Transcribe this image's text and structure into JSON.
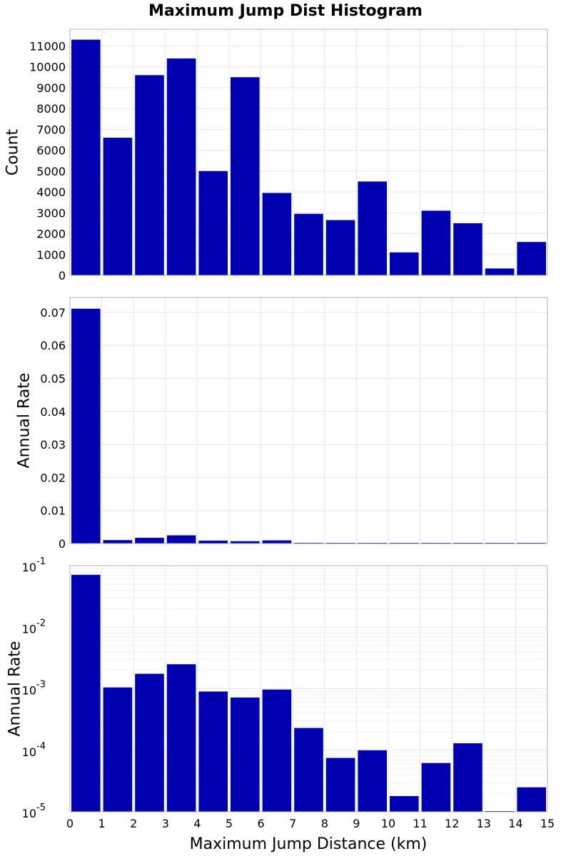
{
  "chart_data": [
    {
      "type": "bar",
      "title": "Maximum Jump Dist Histogram",
      "xlabel": "",
      "ylabel": "Count",
      "xlim": [
        0,
        15
      ],
      "ylim": [
        0,
        11800
      ],
      "yscale": "linear",
      "yticks": [
        "0",
        "1000",
        "2000",
        "3000",
        "4000",
        "5000",
        "6000",
        "7000",
        "8000",
        "9000",
        "10000",
        "11000"
      ],
      "grid": true,
      "bar_color": "#0000b0",
      "bins": [
        [
          0,
          1
        ],
        [
          1,
          2
        ],
        [
          2,
          3
        ],
        [
          3,
          4
        ],
        [
          4,
          5
        ],
        [
          5,
          6
        ],
        [
          6,
          7
        ],
        [
          7,
          8
        ],
        [
          8,
          9
        ],
        [
          9,
          10
        ],
        [
          10,
          11
        ],
        [
          11,
          12
        ],
        [
          12,
          13
        ],
        [
          13,
          14
        ],
        [
          14,
          15
        ]
      ],
      "values": [
        11300,
        6600,
        9600,
        10400,
        5000,
        9500,
        3950,
        2950,
        2650,
        4500,
        1100,
        3100,
        2500,
        330,
        1600
      ]
    },
    {
      "type": "bar",
      "title": "",
      "xlabel": "",
      "ylabel": "Annual Rate",
      "xlim": [
        0,
        15
      ],
      "ylim": [
        0,
        0.0745
      ],
      "yscale": "linear",
      "yticks": [
        "0",
        "0.01",
        "0.02",
        "0.03",
        "0.04",
        "0.05",
        "0.06",
        "0.07"
      ],
      "grid": true,
      "bar_color": "#0000b0",
      "bins": [
        [
          0,
          1
        ],
        [
          1,
          2
        ],
        [
          2,
          3
        ],
        [
          3,
          4
        ],
        [
          4,
          5
        ],
        [
          5,
          6
        ],
        [
          6,
          7
        ],
        [
          7,
          8
        ],
        [
          8,
          9
        ],
        [
          9,
          10
        ],
        [
          10,
          11
        ],
        [
          11,
          12
        ],
        [
          12,
          13
        ],
        [
          13,
          14
        ],
        [
          14,
          15
        ]
      ],
      "values": [
        0.0711,
        0.00105,
        0.00175,
        0.0025,
        0.0009,
        0.00072,
        0.00097,
        0.00023,
        7.5e-05,
        0.0001,
        1.8e-05,
        6.2e-05,
        0.00013,
        1e-05,
        2.5e-05
      ]
    },
    {
      "type": "bar",
      "title": "",
      "xlabel": "Maximum Jump Distance (km)",
      "ylabel": "Annual Rate",
      "xlim": [
        0,
        15
      ],
      "ylim": [
        1e-05,
        0.1
      ],
      "yscale": "log",
      "yticks": [
        {
          "base": "10",
          "exp": "-5"
        },
        {
          "base": "10",
          "exp": "-4"
        },
        {
          "base": "10",
          "exp": "-3"
        },
        {
          "base": "10",
          "exp": "-2"
        },
        {
          "base": "10",
          "exp": "-1"
        }
      ],
      "xticks": [
        "0",
        "1",
        "2",
        "3",
        "4",
        "5",
        "6",
        "7",
        "8",
        "9",
        "10",
        "11",
        "12",
        "13",
        "14",
        "15"
      ],
      "grid": true,
      "bar_color": "#0000b0",
      "bins": [
        [
          0,
          1
        ],
        [
          1,
          2
        ],
        [
          2,
          3
        ],
        [
          3,
          4
        ],
        [
          4,
          5
        ],
        [
          5,
          6
        ],
        [
          6,
          7
        ],
        [
          7,
          8
        ],
        [
          8,
          9
        ],
        [
          9,
          10
        ],
        [
          10,
          11
        ],
        [
          11,
          12
        ],
        [
          12,
          13
        ],
        [
          13,
          14
        ],
        [
          14,
          15
        ]
      ],
      "values": [
        0.0711,
        0.00105,
        0.00175,
        0.0025,
        0.0009,
        0.00072,
        0.00097,
        0.00023,
        7.5e-05,
        0.0001,
        1.8e-05,
        6.2e-05,
        0.00013,
        1e-05,
        2.5e-05
      ]
    }
  ]
}
